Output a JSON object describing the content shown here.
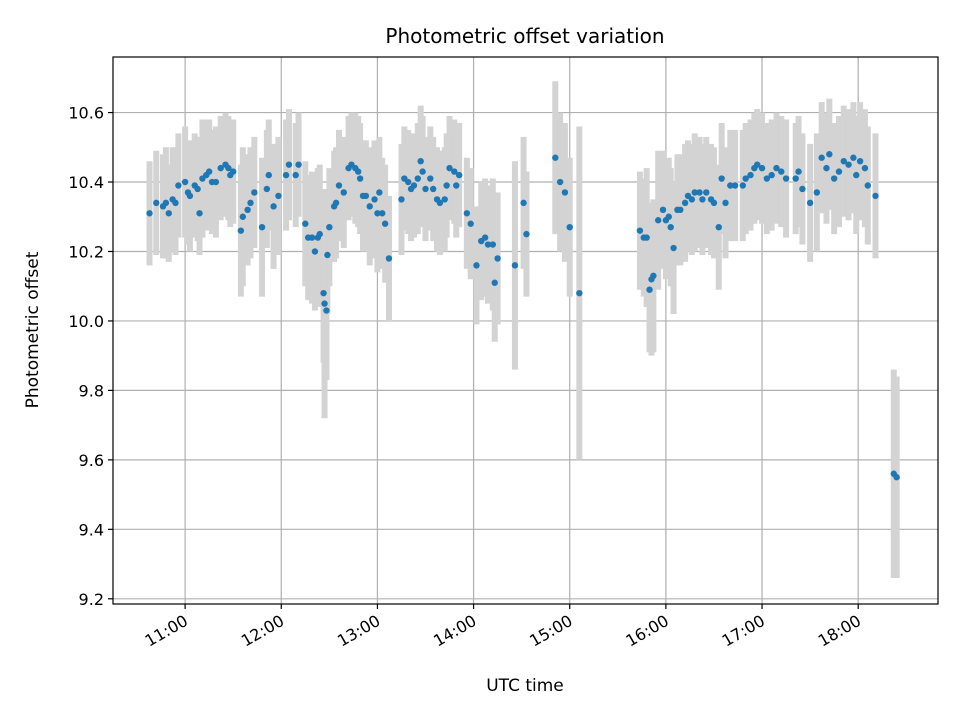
{
  "chart_data": {
    "type": "scatter",
    "title": "Photometric offset variation",
    "xlabel": "UTC time",
    "ylabel": "Photometric offset",
    "x_unit": "hours_utc",
    "xlim": [
      10.25,
      18.83
    ],
    "ylim": [
      9.185,
      10.76
    ],
    "xticks": [
      11,
      12,
      13,
      14,
      15,
      16,
      17,
      18
    ],
    "xtick_labels": [
      "11:00",
      "12:00",
      "13:00",
      "14:00",
      "15:00",
      "16:00",
      "17:00",
      "18:00"
    ],
    "yticks": [
      9.2,
      9.4,
      9.6,
      9.8,
      10.0,
      10.2,
      10.4,
      10.6
    ],
    "ytick_labels": [
      "9.2",
      "9.4",
      "9.6",
      "9.8",
      "10.0",
      "10.2",
      "10.4",
      "10.6"
    ],
    "grid": true,
    "colors": {
      "point": "#1f77b4",
      "errorbar": "#d3d3d3"
    },
    "series": [
      {
        "points": [
          [
            10.63,
            10.31,
            0.15
          ],
          [
            10.7,
            10.34,
            0.15
          ],
          [
            10.77,
            10.33,
            0.15
          ],
          [
            10.8,
            10.34,
            0.16
          ],
          [
            10.83,
            10.31,
            0.14
          ],
          [
            10.87,
            10.35,
            0.15
          ],
          [
            10.9,
            10.34,
            0.15
          ],
          [
            10.93,
            10.39,
            0.15
          ],
          [
            11.0,
            10.4,
            0.16
          ],
          [
            11.03,
            10.37,
            0.15
          ],
          [
            11.05,
            10.36,
            0.16
          ],
          [
            11.1,
            10.39,
            0.15
          ],
          [
            11.13,
            10.38,
            0.15
          ],
          [
            11.15,
            10.31,
            0.12
          ],
          [
            11.18,
            10.41,
            0.17
          ],
          [
            11.22,
            10.42,
            0.16
          ],
          [
            11.25,
            10.43,
            0.15
          ],
          [
            11.28,
            10.4,
            0.15
          ],
          [
            11.32,
            10.4,
            0.16
          ],
          [
            11.37,
            10.44,
            0.15
          ],
          [
            11.42,
            10.45,
            0.15
          ],
          [
            11.45,
            10.44,
            0.15
          ],
          [
            11.47,
            10.42,
            0.15
          ],
          [
            11.5,
            10.43,
            0.15
          ],
          [
            11.58,
            10.26,
            0.19
          ],
          [
            11.6,
            10.3,
            0.2
          ],
          [
            11.65,
            10.32,
            0.16
          ],
          [
            11.68,
            10.34,
            0.16
          ],
          [
            11.72,
            10.37,
            0.16
          ],
          [
            11.8,
            10.27,
            0.2
          ],
          [
            11.85,
            10.38,
            0.17
          ],
          [
            11.87,
            10.42,
            0.16
          ],
          [
            11.92,
            10.33,
            0.18
          ],
          [
            11.97,
            10.36,
            0.17
          ],
          [
            12.05,
            10.42,
            0.16
          ],
          [
            12.08,
            10.45,
            0.16
          ],
          [
            12.15,
            10.42,
            0.15
          ],
          [
            12.18,
            10.45,
            0.15
          ],
          [
            12.25,
            10.28,
            0.18
          ],
          [
            12.28,
            10.24,
            0.18
          ],
          [
            12.32,
            10.24,
            0.19
          ],
          [
            12.35,
            10.2,
            0.17
          ],
          [
            12.38,
            10.24,
            0.2
          ],
          [
            12.4,
            10.25,
            0.2
          ],
          [
            12.44,
            10.08,
            0.2
          ],
          [
            12.45,
            10.05,
            0.33
          ],
          [
            12.47,
            10.03,
            0.2
          ],
          [
            12.48,
            10.19,
            0.17
          ],
          [
            12.5,
            10.27,
            0.17
          ],
          [
            12.55,
            10.33,
            0.16
          ],
          [
            12.57,
            10.34,
            0.16
          ],
          [
            12.6,
            10.39,
            0.16
          ],
          [
            12.65,
            10.37,
            0.16
          ],
          [
            12.7,
            10.44,
            0.15
          ],
          [
            12.73,
            10.45,
            0.15
          ],
          [
            12.77,
            10.44,
            0.16
          ],
          [
            12.8,
            10.43,
            0.16
          ],
          [
            12.82,
            10.41,
            0.16
          ],
          [
            12.85,
            10.36,
            0.16
          ],
          [
            12.88,
            10.36,
            0.16
          ],
          [
            12.92,
            10.33,
            0.17
          ],
          [
            12.97,
            10.35,
            0.17
          ],
          [
            13.0,
            10.31,
            0.17
          ],
          [
            13.02,
            10.37,
            0.16
          ],
          [
            13.05,
            10.31,
            0.16
          ],
          [
            13.08,
            10.28,
            0.17
          ],
          [
            13.12,
            10.18,
            0.18
          ],
          [
            13.25,
            10.35,
            0.16
          ],
          [
            13.28,
            10.41,
            0.15
          ],
          [
            13.32,
            10.4,
            0.15
          ],
          [
            13.35,
            10.38,
            0.15
          ],
          [
            13.38,
            10.39,
            0.15
          ],
          [
            13.42,
            10.41,
            0.16
          ],
          [
            13.45,
            10.46,
            0.16
          ],
          [
            13.47,
            10.43,
            0.16
          ],
          [
            13.5,
            10.38,
            0.15
          ],
          [
            13.55,
            10.41,
            0.15
          ],
          [
            13.58,
            10.38,
            0.15
          ],
          [
            13.62,
            10.35,
            0.15
          ],
          [
            13.65,
            10.34,
            0.15
          ],
          [
            13.7,
            10.35,
            0.15
          ],
          [
            13.72,
            10.39,
            0.15
          ],
          [
            13.75,
            10.44,
            0.15
          ],
          [
            13.8,
            10.43,
            0.15
          ],
          [
            13.82,
            10.39,
            0.15
          ],
          [
            13.85,
            10.42,
            0.15
          ],
          [
            13.93,
            10.31,
            0.16
          ],
          [
            13.97,
            10.28,
            0.16
          ],
          [
            14.03,
            10.16,
            0.17
          ],
          [
            14.08,
            10.23,
            0.17
          ],
          [
            14.12,
            10.24,
            0.17
          ],
          [
            14.15,
            10.22,
            0.17
          ],
          [
            14.2,
            10.22,
            0.19
          ],
          [
            14.22,
            10.11,
            0.17
          ],
          [
            14.25,
            10.18,
            0.19
          ],
          [
            14.43,
            10.16,
            0.3
          ],
          [
            14.52,
            10.34,
            0.19
          ],
          [
            14.55,
            10.25,
            0.18
          ],
          [
            14.85,
            10.47,
            0.22
          ],
          [
            14.9,
            10.4,
            0.2
          ],
          [
            14.95,
            10.37,
            0.2
          ],
          [
            15.0,
            10.27,
            0.2
          ],
          [
            15.1,
            10.08,
            0.48
          ],
          [
            15.73,
            10.26,
            0.17
          ],
          [
            15.77,
            10.24,
            0.17
          ],
          [
            15.8,
            10.24,
            0.2
          ],
          [
            15.83,
            10.09,
            0.18
          ],
          [
            15.85,
            10.12,
            0.22
          ],
          [
            15.87,
            10.13,
            0.22
          ],
          [
            15.92,
            10.29,
            0.2
          ],
          [
            15.97,
            10.32,
            0.17
          ],
          [
            16.0,
            10.29,
            0.17
          ],
          [
            16.03,
            10.3,
            0.17
          ],
          [
            16.05,
            10.27,
            0.17
          ],
          [
            16.08,
            10.21,
            0.19
          ],
          [
            16.12,
            10.32,
            0.16
          ],
          [
            16.15,
            10.32,
            0.16
          ],
          [
            16.2,
            10.34,
            0.17
          ],
          [
            16.23,
            10.36,
            0.16
          ],
          [
            16.27,
            10.35,
            0.16
          ],
          [
            16.3,
            10.37,
            0.17
          ],
          [
            16.35,
            10.37,
            0.16
          ],
          [
            16.38,
            10.35,
            0.16
          ],
          [
            16.42,
            10.37,
            0.16
          ],
          [
            16.47,
            10.35,
            0.16
          ],
          [
            16.5,
            10.34,
            0.16
          ],
          [
            16.55,
            10.27,
            0.18
          ],
          [
            16.58,
            10.41,
            0.16
          ],
          [
            16.62,
            10.34,
            0.16
          ],
          [
            16.67,
            10.39,
            0.16
          ],
          [
            16.72,
            10.39,
            0.16
          ],
          [
            16.8,
            10.39,
            0.16
          ],
          [
            16.83,
            10.41,
            0.16
          ],
          [
            16.88,
            10.42,
            0.16
          ],
          [
            16.92,
            10.44,
            0.16
          ],
          [
            16.95,
            10.45,
            0.16
          ],
          [
            17.0,
            10.44,
            0.16
          ],
          [
            17.05,
            10.41,
            0.16
          ],
          [
            17.1,
            10.42,
            0.16
          ],
          [
            17.15,
            10.44,
            0.16
          ],
          [
            17.2,
            10.43,
            0.16
          ],
          [
            17.25,
            10.41,
            0.17
          ],
          [
            17.35,
            10.41,
            0.16
          ],
          [
            17.38,
            10.43,
            0.16
          ],
          [
            17.42,
            10.38,
            0.16
          ],
          [
            17.5,
            10.34,
            0.17
          ],
          [
            17.57,
            10.37,
            0.17
          ],
          [
            17.62,
            10.47,
            0.16
          ],
          [
            17.67,
            10.44,
            0.16
          ],
          [
            17.7,
            10.48,
            0.16
          ],
          [
            17.75,
            10.41,
            0.16
          ],
          [
            17.8,
            10.43,
            0.16
          ],
          [
            17.85,
            10.46,
            0.16
          ],
          [
            17.9,
            10.45,
            0.16
          ],
          [
            17.95,
            10.47,
            0.16
          ],
          [
            17.98,
            10.42,
            0.17
          ],
          [
            18.02,
            10.46,
            0.17
          ],
          [
            18.07,
            10.44,
            0.17
          ],
          [
            18.1,
            10.39,
            0.17
          ],
          [
            18.18,
            10.36,
            0.18
          ],
          [
            18.37,
            9.56,
            0.3
          ],
          [
            18.4,
            9.55,
            0.29
          ]
        ]
      }
    ]
  }
}
